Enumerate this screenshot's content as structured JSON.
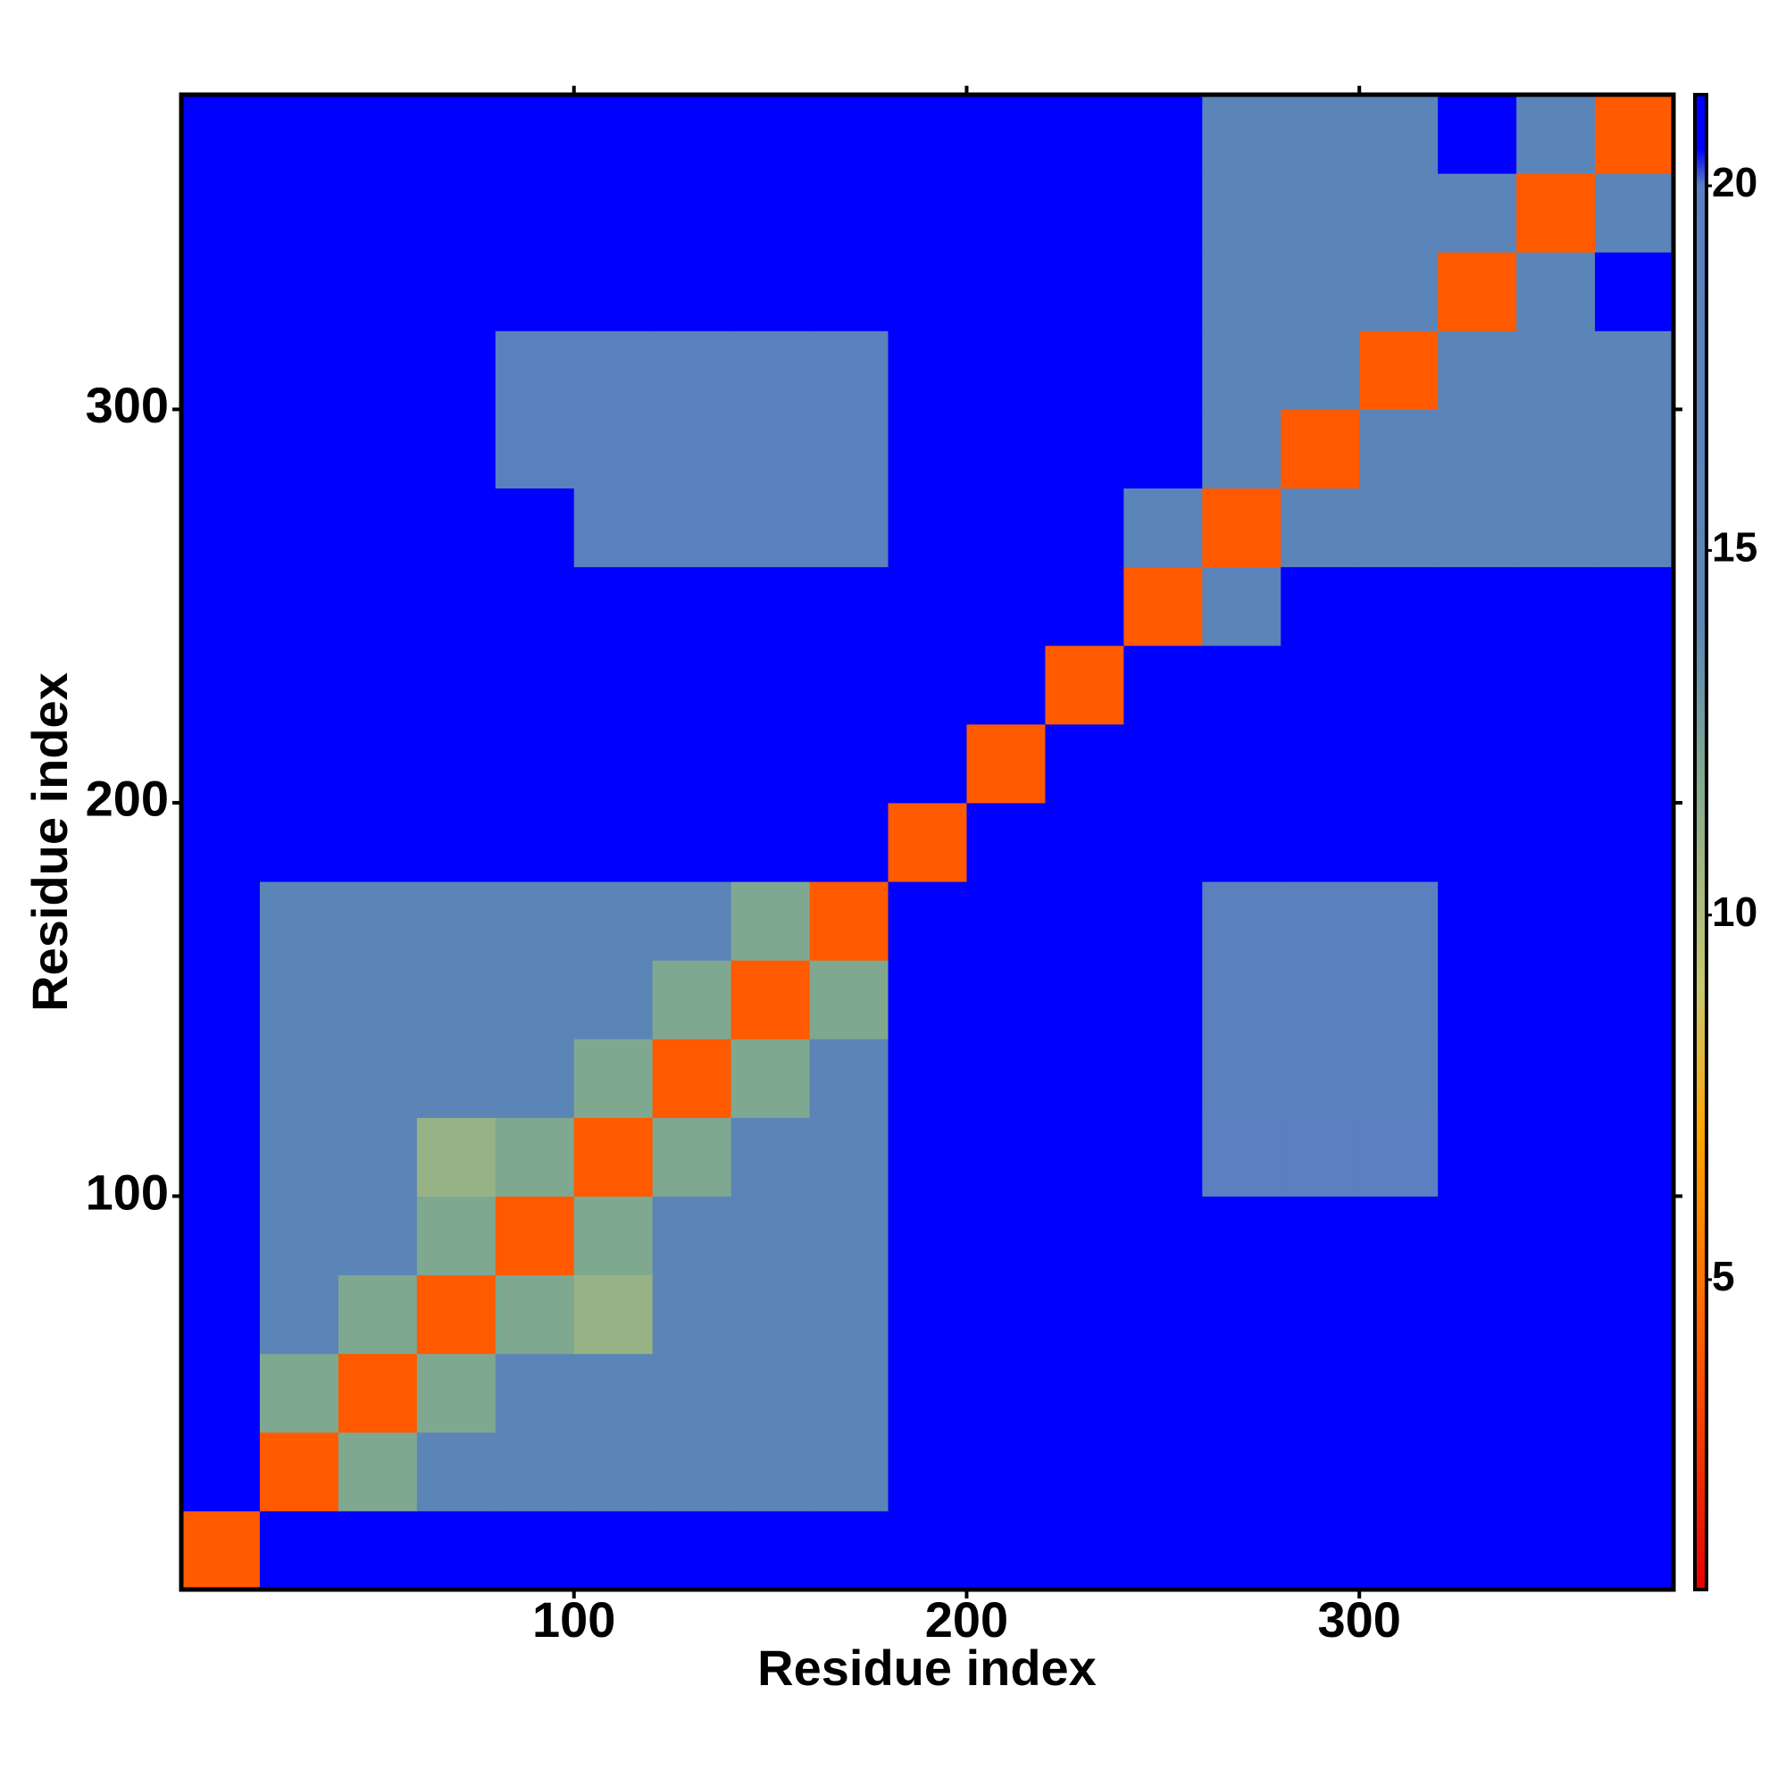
{
  "chart_data": {
    "type": "heatmap",
    "xlabel": "Residue index",
    "ylabel": "Residue index",
    "xbins": [
      0,
      20,
      40,
      60,
      80,
      100,
      120,
      140,
      160,
      180,
      200,
      220,
      240,
      260,
      280,
      300,
      320,
      340,
      360,
      380
    ],
    "ybins": [
      0,
      20,
      40,
      60,
      80,
      100,
      120,
      140,
      160,
      180,
      200,
      220,
      240,
      260,
      280,
      300,
      320,
      340,
      360,
      380
    ],
    "z": [
      [
        4,
        21,
        21,
        21,
        21,
        21,
        21,
        21,
        21,
        21,
        21,
        21,
        21,
        21,
        21,
        21,
        21,
        21,
        21
      ],
      [
        21,
        4,
        12,
        15,
        15,
        15,
        15,
        15,
        15,
        21,
        21,
        21,
        21,
        21,
        21,
        21,
        21,
        21,
        21
      ],
      [
        21,
        12,
        4,
        12,
        15,
        15,
        15,
        15,
        15,
        21,
        21,
        21,
        21,
        21,
        21,
        21,
        21,
        21,
        21
      ],
      [
        21,
        15,
        12,
        4,
        12,
        11,
        15,
        15,
        15,
        21,
        21,
        21,
        21,
        21,
        21,
        21,
        21,
        21,
        21
      ],
      [
        21,
        15,
        15,
        12,
        4,
        12,
        15,
        15,
        15,
        21,
        21,
        21,
        21,
        21,
        21,
        21,
        21,
        21,
        21
      ],
      [
        21,
        15,
        15,
        11,
        12,
        4,
        12,
        15,
        15,
        21,
        21,
        21,
        21,
        20,
        20,
        20,
        21,
        21,
        21
      ],
      [
        21,
        15,
        15,
        15,
        15,
        12,
        4,
        12,
        15,
        21,
        21,
        21,
        21,
        19,
        19,
        19,
        21,
        21,
        21
      ],
      [
        21,
        15,
        15,
        15,
        15,
        15,
        12,
        4,
        12,
        21,
        21,
        21,
        21,
        19,
        19,
        19,
        21,
        21,
        21
      ],
      [
        21,
        15,
        15,
        15,
        15,
        15,
        15,
        12,
        4,
        21,
        21,
        21,
        21,
        19,
        19,
        19,
        21,
        21,
        21
      ],
      [
        21,
        21,
        21,
        21,
        21,
        21,
        21,
        21,
        21,
        4,
        21,
        21,
        21,
        21,
        21,
        21,
        21,
        21,
        21
      ],
      [
        21,
        21,
        21,
        21,
        21,
        21,
        21,
        21,
        21,
        21,
        4,
        21,
        21,
        21,
        21,
        21,
        21,
        21,
        21
      ],
      [
        21,
        21,
        21,
        21,
        21,
        21,
        21,
        21,
        21,
        21,
        21,
        4,
        21,
        21,
        21,
        21,
        21,
        21,
        21
      ],
      [
        21,
        21,
        21,
        21,
        21,
        21,
        21,
        21,
        21,
        21,
        21,
        21,
        4,
        16,
        21,
        21,
        21,
        21,
        21
      ],
      [
        21,
        21,
        21,
        21,
        21,
        19,
        19,
        19,
        19,
        21,
        21,
        21,
        16,
        4,
        16,
        16,
        16,
        16,
        16
      ],
      [
        21,
        21,
        21,
        21,
        19,
        19,
        19,
        19,
        19,
        21,
        21,
        21,
        21,
        16,
        4,
        16,
        16,
        16,
        16
      ],
      [
        21,
        21,
        21,
        21,
        19,
        19,
        19,
        19,
        19,
        21,
        21,
        21,
        21,
        16,
        16,
        4,
        16,
        16,
        16
      ],
      [
        21,
        21,
        21,
        21,
        21,
        21,
        21,
        21,
        21,
        21,
        21,
        21,
        21,
        16,
        16,
        16,
        4,
        16,
        21
      ],
      [
        21,
        21,
        21,
        21,
        21,
        21,
        21,
        21,
        21,
        21,
        21,
        21,
        21,
        16,
        16,
        16,
        16,
        4,
        16
      ],
      [
        21,
        21,
        21,
        21,
        21,
        21,
        21,
        21,
        21,
        21,
        21,
        21,
        21,
        16,
        16,
        16,
        21,
        16,
        4
      ]
    ],
    "xlim": [
      0,
      380
    ],
    "ylim": [
      0,
      380
    ],
    "xticks": [
      100,
      200,
      300
    ],
    "yticks": [
      100,
      200,
      300
    ],
    "colorbar": {
      "lim": [
        0.75,
        21.25
      ],
      "ticks": [
        5,
        10,
        15,
        20
      ],
      "stops": [
        [
          0.75,
          "#e60000"
        ],
        [
          4,
          "#ff5a00"
        ],
        [
          7,
          "#ffa500"
        ],
        [
          9,
          "#c8c870"
        ],
        [
          12,
          "#7fa890"
        ],
        [
          14,
          "#5b86b5"
        ],
        [
          20,
          "#5b7fc0"
        ],
        [
          20.5,
          "#0000ff"
        ],
        [
          21.25,
          "#0000ff"
        ]
      ]
    }
  }
}
